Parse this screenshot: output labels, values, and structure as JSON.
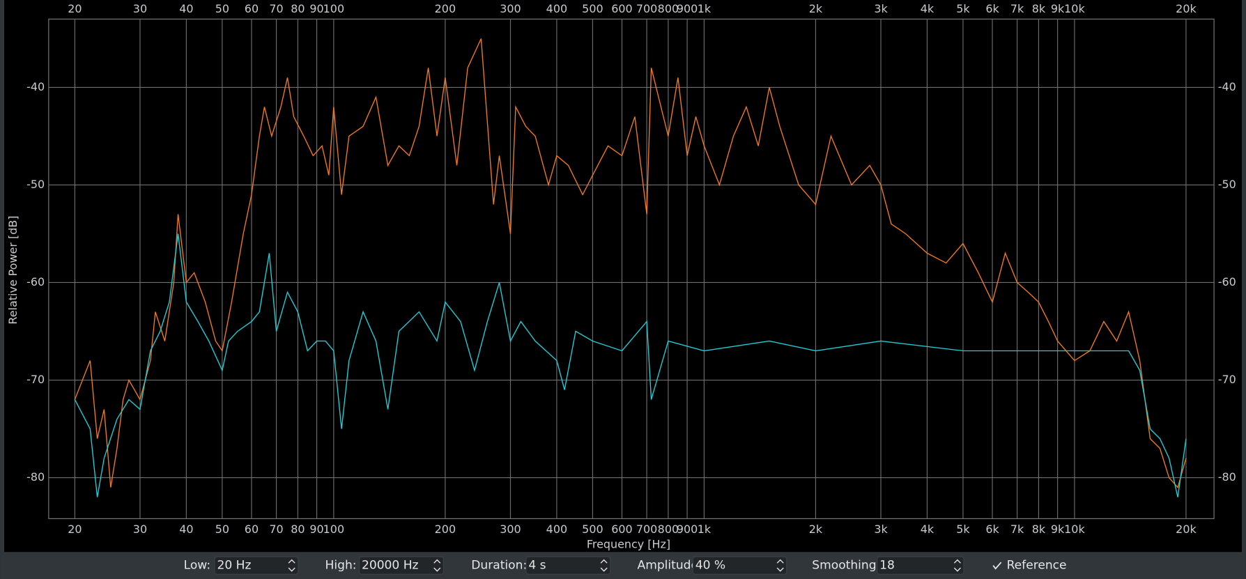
{
  "chart_data": {
    "type": "line",
    "x_label": "Frequency [Hz]",
    "y_label": "Relative Power [dB]",
    "xscale": "log",
    "grid": true,
    "xlim": [
      17,
      23800
    ],
    "ylim": [
      -84.2,
      -33
    ],
    "xticks": [
      20,
      30,
      40,
      50,
      60,
      70,
      80,
      90,
      100,
      200,
      300,
      400,
      500,
      600,
      700,
      800,
      900,
      {
        "value": 1000,
        "label": "1k"
      },
      {
        "value": 2000,
        "label": "2k"
      },
      {
        "value": 3000,
        "label": "3k"
      },
      {
        "value": 4000,
        "label": "4k"
      },
      {
        "value": 5000,
        "label": "5k"
      },
      {
        "value": 6000,
        "label": "6k"
      },
      {
        "value": 7000,
        "label": "7k"
      },
      {
        "value": 8000,
        "label": "8k"
      },
      {
        "value": 9000,
        "label": "9k"
      },
      {
        "value": 10000,
        "label": "10k"
      },
      {
        "value": 20000,
        "label": "20k"
      }
    ],
    "yticks": [
      -40,
      -50,
      -60,
      -70,
      -80
    ],
    "series": [
      {
        "color": "#f07a1e",
        "x": [
          20,
          22,
          23,
          24,
          25,
          26,
          27,
          28,
          30,
          32,
          33,
          35,
          37,
          38,
          40,
          42,
          45,
          48,
          50,
          53,
          57,
          60,
          63,
          65,
          68,
          72,
          75,
          78,
          83,
          88,
          93,
          97,
          100,
          105,
          110,
          120,
          130,
          140,
          150,
          160,
          170,
          180,
          190,
          200,
          215,
          230,
          250,
          270,
          280,
          300,
          310,
          330,
          350,
          380,
          400,
          430,
          470,
          500,
          550,
          600,
          650,
          700,
          720,
          800,
          850,
          900,
          950,
          1000,
          1100,
          1200,
          1300,
          1400,
          1500,
          1600,
          1800,
          2000,
          2200,
          2500,
          2800,
          3000,
          3200,
          3500,
          4000,
          4500,
          5000,
          5500,
          6000,
          6500,
          7000,
          7500,
          8000,
          8500,
          9000,
          10000,
          11000,
          12000,
          13000,
          14000,
          15000,
          16000,
          17000,
          18000,
          19000,
          20000
        ],
        "values": [
          -72,
          -68,
          -76,
          -73,
          -81,
          -77,
          -72,
          -70,
          -72,
          -68,
          -63,
          -66,
          -60,
          -53,
          -60,
          -59,
          -62,
          -66,
          -67,
          -62,
          -55,
          -51,
          -45,
          -42,
          -45,
          -42,
          -39,
          -43,
          -45,
          -47,
          -46,
          -49,
          -42,
          -51,
          -45,
          -44,
          -41,
          -48,
          -46,
          -47,
          -44,
          -38,
          -45,
          -39,
          -48,
          -38,
          -35,
          -52,
          -47,
          -55,
          -42,
          -44,
          -45,
          -50,
          -47,
          -48,
          -51,
          -49,
          -46,
          -47,
          -43,
          -53,
          -38,
          -45,
          -39,
          -47,
          -43,
          -46,
          -50,
          -45,
          -42,
          -46,
          -40,
          -44,
          -50,
          -52,
          -45,
          -50,
          -48,
          -50,
          -54,
          -55,
          -57,
          -58,
          -56,
          -59,
          -62,
          -57,
          -60,
          -61,
          -62,
          -64,
          -66,
          -68,
          -67,
          -64,
          -66,
          -63,
          -68,
          -76,
          -77,
          -80,
          -81,
          -78
        ]
      },
      {
        "color": "#1ecfd8",
        "x": [
          20,
          22,
          23,
          24,
          26,
          28,
          30,
          32,
          34,
          36,
          38,
          40,
          43,
          46,
          50,
          52,
          55,
          60,
          63,
          67,
          70,
          75,
          80,
          85,
          90,
          95,
          100,
          105,
          110,
          120,
          130,
          140,
          150,
          170,
          190,
          200,
          220,
          240,
          260,
          280,
          300,
          320,
          350,
          400,
          420,
          450,
          500,
          600,
          700,
          720,
          800,
          1000,
          1500,
          2000,
          3000,
          5000,
          8000,
          10000,
          14000,
          15000,
          16000,
          17000,
          18000,
          19000,
          20000
        ],
        "values": [
          -72,
          -75,
          -82,
          -78,
          -74,
          -72,
          -73,
          -67,
          -65,
          -62,
          -55,
          -62,
          -64,
          -66,
          -69,
          -66,
          -65,
          -64,
          -63,
          -57,
          -65,
          -61,
          -63,
          -67,
          -66,
          -66,
          -67,
          -75,
          -68,
          -63,
          -66,
          -73,
          -65,
          -63,
          -66,
          -62,
          -64,
          -69,
          -64,
          -60,
          -66,
          -64,
          -66,
          -68,
          -71,
          -65,
          -66,
          -67,
          -64,
          -72,
          -66,
          -67,
          -66,
          -67,
          -66,
          -67,
          -67,
          -67,
          -67,
          -69,
          -75,
          -76,
          -78,
          -82,
          -76
        ]
      }
    ]
  },
  "controls": {
    "low": {
      "label": "Low:",
      "value": "20 Hz"
    },
    "high": {
      "label": "High:",
      "value": "20000 Hz"
    },
    "duration": {
      "label": "Duration:",
      "value": "4 s"
    },
    "amplitude": {
      "label": "Amplitude:",
      "value": "40 %"
    },
    "smoothing": {
      "label": "Smoothing:",
      "value": "18"
    },
    "reference": {
      "label": "Reference",
      "checked": true
    }
  }
}
